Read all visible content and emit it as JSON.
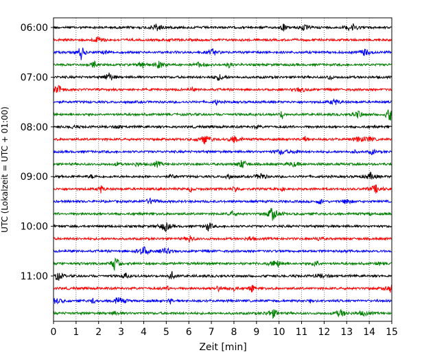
{
  "chart_data": {
    "type": "line",
    "subtype": "helicorder",
    "xlabel": "Zeit  [min]",
    "ylabel": "UTC (Lokalzeit = UTC + 01:00)",
    "xlim": [
      0,
      15
    ],
    "xticks": [
      "0",
      "1",
      "2",
      "3",
      "4",
      "5",
      "6",
      "7",
      "8",
      "9",
      "10",
      "11",
      "12",
      "13",
      "14",
      "15"
    ],
    "grid": "vertical dotted",
    "trace_minutes": 15,
    "y_tick_labels": [
      "06:00",
      "07:00",
      "08:00",
      "09:00",
      "10:00",
      "11:00"
    ],
    "trace_colors": [
      "#000000",
      "#ff0000",
      "#0000ff",
      "#008000"
    ],
    "traces": [
      {
        "start": "06:00",
        "color": "#000000"
      },
      {
        "start": "06:15",
        "color": "#ff0000"
      },
      {
        "start": "06:30",
        "color": "#0000ff"
      },
      {
        "start": "06:45",
        "color": "#008000"
      },
      {
        "start": "07:00",
        "color": "#000000"
      },
      {
        "start": "07:15",
        "color": "#ff0000"
      },
      {
        "start": "07:30",
        "color": "#0000ff"
      },
      {
        "start": "07:45",
        "color": "#008000"
      },
      {
        "start": "08:00",
        "color": "#000000"
      },
      {
        "start": "08:15",
        "color": "#ff0000"
      },
      {
        "start": "08:30",
        "color": "#0000ff"
      },
      {
        "start": "08:45",
        "color": "#008000"
      },
      {
        "start": "09:00",
        "color": "#000000"
      },
      {
        "start": "09:15",
        "color": "#ff0000"
      },
      {
        "start": "09:30",
        "color": "#0000ff"
      },
      {
        "start": "09:45",
        "color": "#008000"
      },
      {
        "start": "10:00",
        "color": "#000000"
      },
      {
        "start": "10:15",
        "color": "#ff0000"
      },
      {
        "start": "10:30",
        "color": "#0000ff"
      },
      {
        "start": "10:45",
        "color": "#008000"
      },
      {
        "start": "11:00",
        "color": "#000000"
      },
      {
        "start": "11:15",
        "color": "#ff0000"
      },
      {
        "start": "11:30",
        "color": "#0000ff"
      },
      {
        "start": "11:45",
        "color": "#008000"
      }
    ]
  }
}
